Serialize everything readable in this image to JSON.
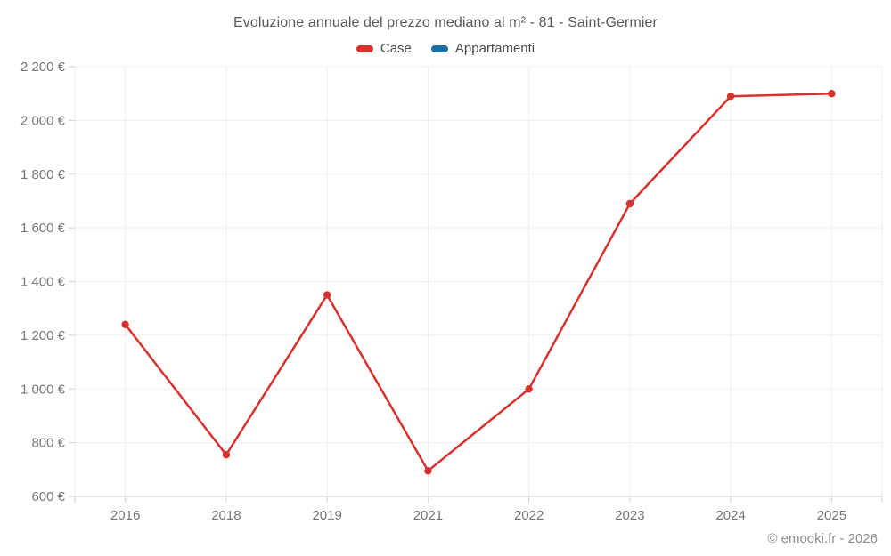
{
  "title": "Evoluzione annuale del prezzo mediano al m² - 81 - Saint-Germier",
  "attribution": "© emooki.fr - 2026",
  "legend": [
    {
      "label": "Case",
      "color": "#d7302e"
    },
    {
      "label": "Appartamenti",
      "color": "#1c6ea4"
    }
  ],
  "chart_data": {
    "type": "line",
    "title": "Evoluzione annuale del prezzo mediano al m² - 81 - Saint-Germier",
    "xlabel": "",
    "ylabel": "",
    "currency": "€",
    "categories": [
      "2016",
      "2018",
      "2019",
      "2021",
      "2022",
      "2023",
      "2024",
      "2025"
    ],
    "series": [
      {
        "name": "Case",
        "color": "#d7302e",
        "values": [
          1240,
          755,
          1350,
          695,
          1000,
          1690,
          2090,
          2100
        ]
      },
      {
        "name": "Appartamenti",
        "color": "#1c6ea4",
        "values": []
      }
    ],
    "ylim": [
      600,
      2200
    ],
    "ytick_step": 200,
    "yticks": [
      {
        "value": 600,
        "label": "600 €"
      },
      {
        "value": 800,
        "label": "800 €"
      },
      {
        "value": 1000,
        "label": "1 000 €"
      },
      {
        "value": 1200,
        "label": "1 200 €"
      },
      {
        "value": 1400,
        "label": "1 400 €"
      },
      {
        "value": 1600,
        "label": "1 600 €"
      },
      {
        "value": 1800,
        "label": "1 800 €"
      },
      {
        "value": 2000,
        "label": "2 000 €"
      },
      {
        "value": 2200,
        "label": "2 200 €"
      }
    ],
    "grid": true,
    "legend_position": "top"
  }
}
